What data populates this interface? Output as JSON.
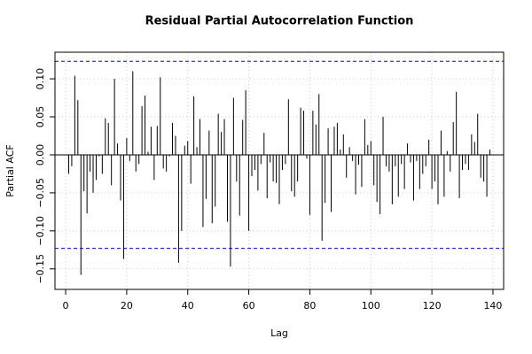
{
  "chart_data": {
    "type": "bar",
    "title": "Residual Partial Autocorrelation Function",
    "xlabel": "Lag",
    "ylabel": "Partial ACF",
    "x": [
      1,
      2,
      3,
      4,
      5,
      6,
      7,
      8,
      9,
      10,
      11,
      12,
      13,
      14,
      15,
      16,
      17,
      18,
      19,
      20,
      21,
      22,
      23,
      24,
      25,
      26,
      27,
      28,
      29,
      30,
      31,
      32,
      33,
      34,
      35,
      36,
      37,
      38,
      39,
      40,
      41,
      42,
      43,
      44,
      45,
      46,
      47,
      48,
      49,
      50,
      51,
      52,
      53,
      54,
      55,
      56,
      57,
      58,
      59,
      60,
      61,
      62,
      63,
      64,
      65,
      66,
      67,
      68,
      69,
      70,
      71,
      72,
      73,
      74,
      75,
      76,
      77,
      78,
      79,
      80,
      81,
      82,
      83,
      84,
      85,
      86,
      87,
      88,
      89,
      90,
      91,
      92,
      93,
      94,
      95,
      96,
      97,
      98,
      99,
      100,
      101,
      102,
      103,
      104,
      105,
      106,
      107,
      108,
      109,
      110,
      111,
      112,
      113,
      114,
      115,
      116,
      117,
      118,
      119,
      120,
      121,
      122,
      123,
      124,
      125,
      126,
      127,
      128,
      129,
      130,
      131,
      132,
      133,
      134,
      135,
      136,
      137,
      138,
      139
    ],
    "values": [
      -0.025,
      -0.015,
      0.104,
      0.072,
      -0.158,
      -0.048,
      -0.077,
      -0.022,
      -0.05,
      -0.033,
      -0.002,
      -0.025,
      0.048,
      0.042,
      -0.04,
      0.1,
      0.015,
      -0.06,
      -0.137,
      0.022,
      -0.008,
      0.11,
      -0.022,
      -0.012,
      0.064,
      0.078,
      0.004,
      0.037,
      -0.033,
      0.038,
      0.102,
      -0.018,
      -0.022,
      -0.002,
      0.042,
      0.025,
      -0.142,
      -0.1,
      0.012,
      0.018,
      -0.038,
      0.077,
      0.01,
      0.047,
      -0.095,
      -0.058,
      0.032,
      -0.09,
      -0.068,
      0.054,
      0.03,
      0.047,
      -0.088,
      -0.147,
      0.075,
      -0.035,
      -0.08,
      0.046,
      0.085,
      -0.1,
      -0.028,
      -0.02,
      -0.047,
      -0.012,
      0.029,
      -0.057,
      -0.01,
      -0.035,
      -0.037,
      -0.065,
      -0.02,
      -0.012,
      0.073,
      -0.048,
      -0.055,
      -0.035,
      0.062,
      0.058,
      -0.005,
      -0.079,
      0.058,
      0.04,
      0.08,
      -0.113,
      -0.063,
      0.035,
      -0.075,
      0.037,
      0.042,
      0.007,
      0.027,
      -0.03,
      0.01,
      -0.008,
      -0.052,
      -0.013,
      -0.042,
      0.047,
      0.013,
      0.018,
      -0.04,
      -0.062,
      -0.078,
      0.05,
      -0.015,
      -0.022,
      -0.065,
      -0.015,
      -0.055,
      -0.012,
      -0.045,
      0.015,
      -0.01,
      -0.06,
      -0.008,
      -0.045,
      -0.025,
      -0.015,
      0.02,
      -0.045,
      -0.035,
      -0.065,
      0.032,
      -0.055,
      0.005,
      -0.022,
      0.043,
      0.083,
      -0.057,
      -0.02,
      -0.012,
      -0.02,
      0.027,
      0.017,
      0.054,
      -0.03,
      -0.035,
      -0.055,
      0.007
    ],
    "color": "#000000",
    "hlines": [
      0.123,
      -0.123
    ],
    "hline_color": "#0000ff",
    "xlim": [
      -3.5,
      143.5
    ],
    "ylim": [
      -0.177,
      0.135
    ],
    "xticks": [
      0,
      20,
      40,
      60,
      80,
      100,
      120,
      140
    ],
    "yticks": [
      {
        "value": -0.15,
        "label": "−0.15"
      },
      {
        "value": -0.1,
        "label": "−0.10"
      },
      {
        "value": -0.05,
        "label": "−0.05"
      },
      {
        "value": 0,
        "label": "0.00"
      },
      {
        "value": 0.05,
        "label": "0.05"
      },
      {
        "value": 0.1,
        "label": "0.10"
      }
    ],
    "grid": true
  }
}
